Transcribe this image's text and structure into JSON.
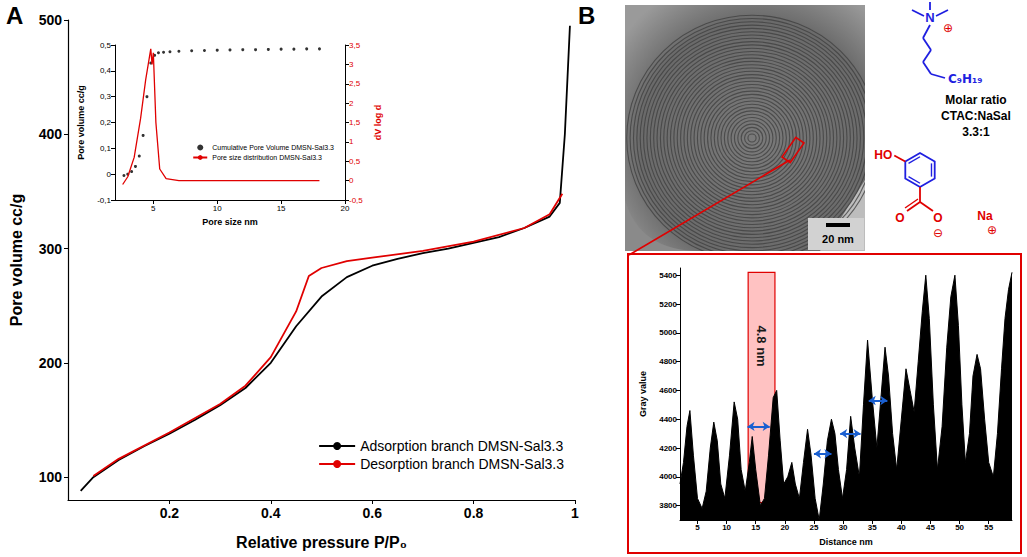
{
  "figure": {
    "panel_labels": [
      "A",
      "B"
    ],
    "tem": {
      "scale_bar": "20 nm"
    },
    "ctac": {
      "atom": "N",
      "charge": "⊕",
      "chain": "C₉H₁₉",
      "color": "#1f1fe0"
    },
    "ratio": [
      "Molar ratio",
      "CTAC:NaSal",
      "3.3:1"
    ],
    "nasal": {
      "hydroxyl": "HO",
      "carbonyl_oxygen": "O",
      "anion_oxygen": "O",
      "anion_charge": "⊖",
      "counterion": "Na",
      "cation_charge": "⊕",
      "ring_color": "#1f1fe0",
      "group_color": "#e00000"
    },
    "connector_color": "#e00000"
  },
  "chart_data": [
    {
      "type": "line",
      "xlabel": "Relative pressure P/P₀",
      "ylabel": "Pore volume cc/g",
      "xlim": [
        0,
        1
      ],
      "xticks": [
        0.2,
        0.4,
        0.6,
        0.8,
        1
      ],
      "ylim": [
        80,
        500
      ],
      "yticks": [
        100,
        200,
        300,
        400,
        500
      ],
      "grid": false,
      "legend": "lower right",
      "series": [
        {
          "name": "Adsorption branch DMSN-Sal3.3",
          "color": "#000000",
          "line_style": "solid",
          "x": [
            0.025,
            0.05,
            0.1,
            0.15,
            0.2,
            0.25,
            0.3,
            0.35,
            0.4,
            0.45,
            0.5,
            0.55,
            0.6,
            0.65,
            0.7,
            0.75,
            0.8,
            0.85,
            0.9,
            0.95,
            0.97,
            0.98,
            0.99
          ],
          "values": [
            88,
            100,
            115,
            127,
            138,
            150,
            163,
            178,
            200,
            232,
            258,
            275,
            285,
            291,
            296,
            300,
            305,
            310,
            318,
            328,
            340,
            400,
            495
          ]
        },
        {
          "name": "Desorption branch DMSN-Sal3.3",
          "color": "#e00000",
          "line_style": "solid",
          "x": [
            0.05,
            0.1,
            0.2,
            0.3,
            0.35,
            0.4,
            0.45,
            0.475,
            0.5,
            0.55,
            0.6,
            0.7,
            0.8,
            0.9,
            0.95,
            0.975
          ],
          "values": [
            101,
            116,
            139,
            164,
            180,
            205,
            245,
            276,
            283,
            289,
            292,
            298,
            306,
            318,
            330,
            348
          ]
        }
      ]
    },
    {
      "type": "line",
      "xlabel": "Pore size nm",
      "ylabel": "Pore volume cc/g",
      "y2label": "dV log d",
      "xlim": [
        2,
        20
      ],
      "xticks": [
        5,
        10,
        15,
        20
      ],
      "ylim": [
        -0.1,
        0.5
      ],
      "yticks": [
        {
          "value": -0.1,
          "label": "-0,1"
        },
        0,
        {
          "value": 0.1,
          "label": "0,1"
        },
        {
          "value": 0.2,
          "label": "0,2"
        },
        {
          "value": 0.3,
          "label": "0,3"
        },
        {
          "value": 0.4,
          "label": "0,4"
        },
        {
          "value": 0.5,
          "label": "0,5"
        }
      ],
      "y2lim": [
        -0.5,
        3.5
      ],
      "y2ticks": [
        {
          "value": -0.5,
          "label": "-0,5"
        },
        0,
        {
          "value": 0.5,
          "label": "0,5"
        },
        1,
        {
          "value": 1.5,
          "label": "1,5"
        },
        2,
        {
          "value": 2.5,
          "label": "2,5"
        },
        3,
        {
          "value": 3.5,
          "label": "3,5"
        }
      ],
      "grid": false,
      "legend": "lower right",
      "series": [
        {
          "name": "Cumulative Pore Volume DMSN-Sal3.3",
          "type": "scatter",
          "marker": "circle",
          "color": "#000000",
          "x": [
            2.7,
            3.0,
            3.3,
            3.6,
            3.9,
            4.2,
            4.5,
            4.8,
            5.1,
            5.4,
            5.8,
            6.3,
            7,
            8,
            9,
            10,
            11,
            12,
            13,
            14,
            15,
            16,
            17,
            18
          ],
          "values": [
            -0.005,
            0,
            0.01,
            0.03,
            0.07,
            0.15,
            0.3,
            0.43,
            0.46,
            0.47,
            0.472,
            0.474,
            0.476,
            0.478,
            0.479,
            0.48,
            0.481,
            0.482,
            0.482,
            0.483,
            0.484,
            0.484,
            0.485,
            0.485
          ]
        },
        {
          "name": "Pore size distribution DMSN-Sal3.3",
          "type": "line",
          "axis": "y2",
          "color": "#e00000",
          "x": [
            2.6,
            3,
            3.5,
            4,
            4.4,
            4.7,
            4.8,
            4.9,
            5,
            5.2,
            5.5,
            6,
            7,
            8,
            10,
            12,
            14,
            16,
            18
          ],
          "values": [
            -0.1,
            0.1,
            0.6,
            1.6,
            2.6,
            3.2,
            3.4,
            3.0,
            3.3,
            1.5,
            0.3,
            0.05,
            0,
            0,
            0,
            0,
            0,
            0,
            0
          ]
        }
      ]
    },
    {
      "type": "area",
      "xlabel": "Distance nm",
      "ylabel": "Gray value",
      "xlim": [
        2,
        59
      ],
      "xticks": [
        5,
        10,
        15,
        20,
        25,
        30,
        35,
        40,
        45,
        50,
        55
      ],
      "ylim": [
        3700,
        5450
      ],
      "yticks": [
        3800,
        4000,
        4200,
        4400,
        4600,
        4800,
        5000,
        5200,
        5400
      ],
      "grid": false,
      "series": [
        {
          "color": "#000000",
          "x": [
            2,
            2.6,
            3.2,
            3.7,
            4.3,
            5,
            5.8,
            6.5,
            7.2,
            7.8,
            8.4,
            9,
            9.7,
            10.5,
            11.3,
            11.9,
            12.5,
            13.2,
            13.9,
            14.4,
            15,
            15.8,
            16.5,
            17.2,
            18,
            18.6,
            19.2,
            19.8,
            20.5,
            21.2,
            21.8,
            22.5,
            23.2,
            23.9,
            24.5,
            25.2,
            25.9,
            26.6,
            27.3,
            28,
            28.6,
            29.2,
            29.9,
            30.6,
            31.3,
            32,
            32.8,
            33.5,
            34.2,
            35,
            35.8,
            36.5,
            37.2,
            37.8,
            38.5,
            39.2,
            40,
            40.8,
            41.5,
            42.2,
            42.9,
            43.6,
            44.2,
            44.8,
            45.5,
            46.2,
            47,
            47.8,
            48.5,
            49.2,
            49.8,
            50.4,
            51,
            51.7,
            52.3,
            53,
            53.6,
            54.3,
            55,
            55.8,
            56.5,
            57.2,
            57.8,
            58.4,
            59
          ],
          "values": [
            3950,
            4100,
            4350,
            4460,
            4150,
            3850,
            3780,
            3900,
            4200,
            4380,
            4250,
            3950,
            3850,
            4150,
            4520,
            4400,
            4050,
            3900,
            4100,
            4280,
            4050,
            3800,
            3850,
            4150,
            4550,
            4600,
            4250,
            3950,
            4000,
            4100,
            3950,
            3850,
            4100,
            4330,
            4150,
            3850,
            3700,
            3950,
            4250,
            4400,
            4300,
            4050,
            3850,
            4050,
            4420,
            4200,
            4000,
            4500,
            4950,
            4550,
            4200,
            4550,
            4900,
            4700,
            4300,
            4050,
            4400,
            4750,
            4600,
            4450,
            4800,
            5150,
            5400,
            5100,
            4500,
            4050,
            4350,
            4900,
            5250,
            5400,
            5050,
            4500,
            4100,
            4300,
            4700,
            4850,
            4750,
            4400,
            4100,
            4000,
            4300,
            4750,
            5100,
            5300,
            5420
          ]
        }
      ],
      "highlight": {
        "x": [
          13.7,
          18.3
        ],
        "y": [
          3820,
          5420
        ],
        "label": "4.8 nm",
        "color": "#e00000"
      },
      "distance_markers": {
        "color": "#1a5fd0",
        "spans": [
          {
            "x": [
              13.6,
              17.4
            ],
            "y": 4350
          },
          {
            "x": [
              25.0,
              28.0
            ],
            "y": 4160
          },
          {
            "x": [
              29.5,
              33.0
            ],
            "y": 4300
          },
          {
            "x": [
              34.4,
              37.6
            ],
            "y": 4530
          }
        ]
      }
    }
  ]
}
